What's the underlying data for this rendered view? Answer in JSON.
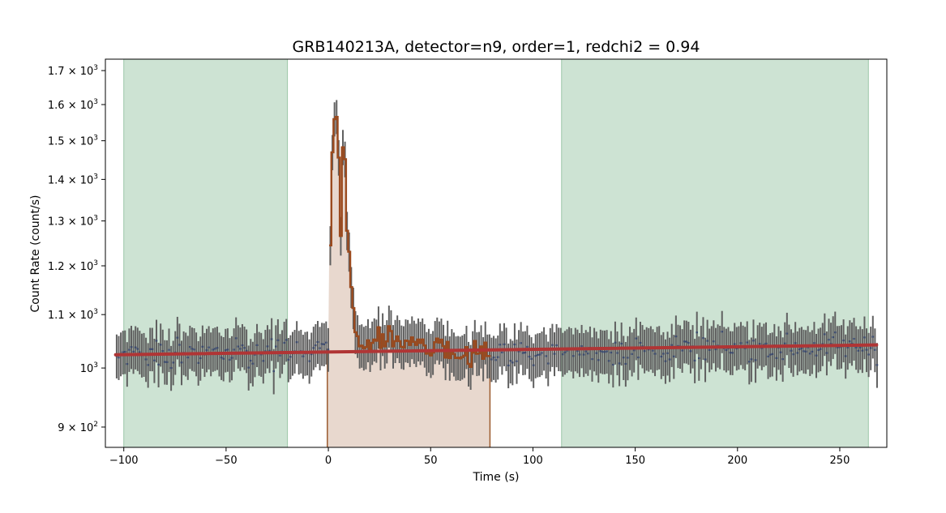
{
  "chart_data": {
    "type": "line",
    "title": "GRB140213A, detector=n9, order=1, redchi2 = 0.94",
    "xlabel": "Time (s)",
    "ylabel": "Count Rate (count/s)",
    "xlim": [
      -109,
      273
    ],
    "ylim": [
      868,
      1735
    ],
    "yscale": "log",
    "grid": false,
    "x_ticks": [
      {
        "value": -100,
        "label": "−100"
      },
      {
        "value": -50,
        "label": "−50"
      },
      {
        "value": 0,
        "label": "0"
      },
      {
        "value": 50,
        "label": "50"
      },
      {
        "value": 100,
        "label": "100"
      },
      {
        "value": 150,
        "label": "150"
      },
      {
        "value": 200,
        "label": "200"
      },
      {
        "value": 250,
        "label": "250"
      }
    ],
    "y_ticks": [
      {
        "value": 900,
        "mant": "9",
        "exp": "2",
        "has_mant": true
      },
      {
        "value": 1000,
        "mant": "",
        "exp": "3",
        "has_mant": false
      },
      {
        "value": 1100,
        "mant": "1.1",
        "exp": "3",
        "has_mant": true
      },
      {
        "value": 1200,
        "mant": "1.2",
        "exp": "3",
        "has_mant": true
      },
      {
        "value": 1300,
        "mant": "1.3",
        "exp": "3",
        "has_mant": true
      },
      {
        "value": 1400,
        "mant": "1.4",
        "exp": "3",
        "has_mant": true
      },
      {
        "value": 1500,
        "mant": "1.5",
        "exp": "3",
        "has_mant": true
      },
      {
        "value": 1600,
        "mant": "1.6",
        "exp": "3",
        "has_mant": true
      },
      {
        "value": 1700,
        "mant": "1.7",
        "exp": "3",
        "has_mant": true
      }
    ],
    "background_regions": [
      {
        "x0": -100,
        "x1": -20,
        "color": "#cde3d3"
      },
      {
        "x0": 114,
        "x1": 264,
        "color": "#cde3d3"
      }
    ],
    "source_region": {
      "x0": -0.5,
      "x1": 79,
      "color": "#e8d8ce",
      "edge": "#9b5a2e"
    },
    "background_model": {
      "x": [
        -104,
        268
      ],
      "y": [
        1024,
        1042
      ],
      "color": "#b03535"
    },
    "light_curve": {
      "bin_width": 1.024,
      "x_start": -104,
      "error_color": "#606060",
      "data_color": "#3c4a6e",
      "source_color": "#9b4a1e",
      "control_points": [
        [
          -104,
          1025
        ],
        [
          -3,
          1030
        ],
        [
          0,
          1040
        ],
        [
          0.5,
          1280
        ],
        [
          2,
          1560
        ],
        [
          4,
          1570
        ],
        [
          5.5,
          1250
        ],
        [
          7,
          1580
        ],
        [
          8.5,
          1280
        ],
        [
          10,
          1210
        ],
        [
          11.5,
          1110
        ],
        [
          14,
          1040
        ],
        [
          20,
          1050
        ],
        [
          25,
          1055
        ],
        [
          35,
          1040
        ],
        [
          45,
          1045
        ],
        [
          55,
          1040
        ],
        [
          65,
          1030
        ],
        [
          75,
          1025
        ],
        [
          80,
          1027
        ],
        [
          268,
          1040
        ]
      ],
      "noise_amp": 26,
      "seed": 140213
    }
  }
}
